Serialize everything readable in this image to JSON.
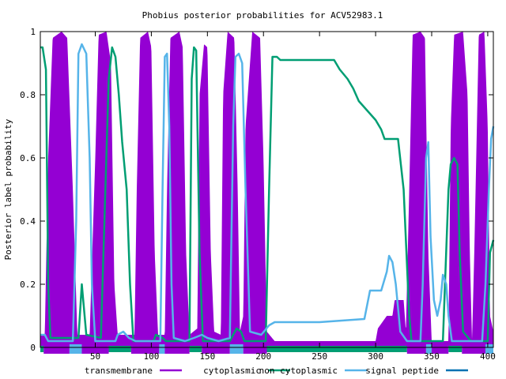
{
  "chart_data": {
    "type": "area",
    "title": "Phobius posterior probabilities for ACV52983.1",
    "xlabel": "",
    "ylabel": "Posterior label probability",
    "xlim": [
      1,
      405
    ],
    "ylim": [
      0,
      1
    ],
    "x_ticks": [
      50,
      100,
      150,
      200,
      250,
      300,
      350,
      400
    ],
    "y_ticks": [
      0,
      0.2,
      0.4,
      0.6,
      0.8,
      1
    ],
    "y_tick_labels": [
      "0",
      "0.2",
      "0.4",
      "0.6",
      "0.8",
      "1"
    ],
    "legend_position": "bottom",
    "series": [
      {
        "name": "transmembrane",
        "color": "#9400d3",
        "style": "impulse",
        "points": [
          [
            1,
            0.04
          ],
          [
            5,
            0.04
          ],
          [
            8,
            0.6
          ],
          [
            12,
            0.98
          ],
          [
            20,
            1
          ],
          [
            25,
            0.98
          ],
          [
            30,
            0.5
          ],
          [
            34,
            0.04
          ],
          [
            45,
            0.04
          ],
          [
            50,
            0.6
          ],
          [
            53,
            0.99
          ],
          [
            60,
            1
          ],
          [
            64,
            0.9
          ],
          [
            67,
            0.2
          ],
          [
            70,
            0.04
          ],
          [
            85,
            0.04
          ],
          [
            87,
            0.5
          ],
          [
            90,
            0.98
          ],
          [
            97,
            1
          ],
          [
            100,
            0.95
          ],
          [
            103,
            0.3
          ],
          [
            106,
            0.04
          ],
          [
            112,
            0.04
          ],
          [
            114,
            0.5
          ],
          [
            117,
            0.98
          ],
          [
            125,
            1
          ],
          [
            128,
            0.95
          ],
          [
            131,
            0.3
          ],
          [
            134,
            0.04
          ],
          [
            141,
            0.06
          ],
          [
            143,
            0.8
          ],
          [
            147,
            0.96
          ],
          [
            150,
            0.95
          ],
          [
            153,
            0.3
          ],
          [
            156,
            0.05
          ],
          [
            162,
            0.04
          ],
          [
            164,
            0.8
          ],
          [
            168,
            1
          ],
          [
            174,
            0.98
          ],
          [
            177,
            0.5
          ],
          [
            179,
            0.05
          ],
          [
            182,
            0.1
          ],
          [
            184,
            0.7
          ],
          [
            190,
            1
          ],
          [
            197,
            0.98
          ],
          [
            200,
            0.6
          ],
          [
            203,
            0.05
          ],
          [
            210,
            0.02
          ],
          [
            300,
            0.02
          ],
          [
            302,
            0.06
          ],
          [
            310,
            0.1
          ],
          [
            315,
            0.1
          ],
          [
            317,
            0.15
          ],
          [
            325,
            0.15
          ],
          [
            327,
            0.05
          ],
          [
            330,
            0.5
          ],
          [
            333,
            0.99
          ],
          [
            340,
            1
          ],
          [
            344,
            0.98
          ],
          [
            347,
            0.3
          ],
          [
            350,
            0.02
          ],
          [
            365,
            0.02
          ],
          [
            367,
            0.7
          ],
          [
            370,
            0.99
          ],
          [
            378,
            1
          ],
          [
            382,
            0.8
          ],
          [
            384,
            0.3
          ],
          [
            386,
            0.02
          ],
          [
            388,
            0.3
          ],
          [
            392,
            0.99
          ],
          [
            397,
            1
          ],
          [
            400,
            0.7
          ],
          [
            402,
            0.1
          ],
          [
            405,
            0.05
          ]
        ]
      },
      {
        "name": "cytoplasmic",
        "color": "#009e73",
        "style": "line",
        "points": [
          [
            1,
            0.95
          ],
          [
            3,
            0.95
          ],
          [
            6,
            0.88
          ],
          [
            8,
            0.2
          ],
          [
            10,
            0.03
          ],
          [
            35,
            0.03
          ],
          [
            38,
            0.2
          ],
          [
            42,
            0.04
          ],
          [
            55,
            0.03
          ],
          [
            62,
            0.85
          ],
          [
            65,
            0.95
          ],
          [
            68,
            0.92
          ],
          [
            71,
            0.8
          ],
          [
            74,
            0.65
          ],
          [
            78,
            0.5
          ],
          [
            81,
            0.2
          ],
          [
            84,
            0.02
          ],
          [
            102,
            0.02
          ],
          [
            104,
            0.04
          ],
          [
            110,
            0.03
          ],
          [
            113,
            0.02
          ],
          [
            134,
            0.02
          ],
          [
            136,
            0.85
          ],
          [
            138,
            0.95
          ],
          [
            140,
            0.94
          ],
          [
            143,
            0.3
          ],
          [
            146,
            0.02
          ],
          [
            160,
            0.02
          ],
          [
            170,
            0.02
          ],
          [
            176,
            0.06
          ],
          [
            180,
            0.05
          ],
          [
            183,
            0.02
          ],
          [
            202,
            0.02
          ],
          [
            205,
            0.5
          ],
          [
            208,
            0.92
          ],
          [
            212,
            0.92
          ],
          [
            215,
            0.91
          ],
          [
            263,
            0.91
          ],
          [
            268,
            0.88
          ],
          [
            275,
            0.85
          ],
          [
            280,
            0.82
          ],
          [
            285,
            0.78
          ],
          [
            290,
            0.76
          ],
          [
            295,
            0.74
          ],
          [
            300,
            0.72
          ],
          [
            305,
            0.69
          ],
          [
            308,
            0.66
          ],
          [
            320,
            0.66
          ],
          [
            325,
            0.5
          ],
          [
            330,
            0.1
          ],
          [
            332,
            0.02
          ],
          [
            360,
            0.02
          ],
          [
            365,
            0.5
          ],
          [
            367,
            0.58
          ],
          [
            370,
            0.6
          ],
          [
            373,
            0.58
          ],
          [
            375,
            0.3
          ],
          [
            378,
            0.05
          ],
          [
            385,
            0.02
          ],
          [
            400,
            0.02
          ],
          [
            402,
            0.3
          ],
          [
            405,
            0.34
          ]
        ]
      },
      {
        "name": "non cytoplasmic",
        "color": "#56b4e9",
        "style": "line",
        "points": [
          [
            1,
            0.04
          ],
          [
            5,
            0.04
          ],
          [
            8,
            0.02
          ],
          [
            30,
            0.02
          ],
          [
            33,
            0.4
          ],
          [
            35,
            0.93
          ],
          [
            38,
            0.96
          ],
          [
            42,
            0.93
          ],
          [
            45,
            0.6
          ],
          [
            47,
            0.2
          ],
          [
            50,
            0.02
          ],
          [
            68,
            0.02
          ],
          [
            70,
            0.04
          ],
          [
            75,
            0.05
          ],
          [
            80,
            0.03
          ],
          [
            86,
            0.02
          ],
          [
            108,
            0.02
          ],
          [
            110,
            0.5
          ],
          [
            112,
            0.92
          ],
          [
            114,
            0.93
          ],
          [
            116,
            0.7
          ],
          [
            118,
            0.2
          ],
          [
            120,
            0.03
          ],
          [
            130,
            0.02
          ],
          [
            138,
            0.03
          ],
          [
            145,
            0.04
          ],
          [
            150,
            0.03
          ],
          [
            160,
            0.02
          ],
          [
            170,
            0.03
          ],
          [
            173,
            0.7
          ],
          [
            175,
            0.92
          ],
          [
            178,
            0.93
          ],
          [
            181,
            0.9
          ],
          [
            184,
            0.5
          ],
          [
            188,
            0.05
          ],
          [
            198,
            0.04
          ],
          [
            205,
            0.07
          ],
          [
            210,
            0.08
          ],
          [
            250,
            0.08
          ],
          [
            270,
            0.085
          ],
          [
            290,
            0.09
          ],
          [
            295,
            0.18
          ],
          [
            305,
            0.18
          ],
          [
            310,
            0.24
          ],
          [
            312,
            0.29
          ],
          [
            315,
            0.27
          ],
          [
            318,
            0.2
          ],
          [
            322,
            0.05
          ],
          [
            328,
            0.02
          ],
          [
            340,
            0.02
          ],
          [
            342,
            0.2
          ],
          [
            345,
            0.6
          ],
          [
            347,
            0.65
          ],
          [
            349,
            0.35
          ],
          [
            352,
            0.15
          ],
          [
            355,
            0.1
          ],
          [
            358,
            0.15
          ],
          [
            360,
            0.23
          ],
          [
            363,
            0.2
          ],
          [
            365,
            0.1
          ],
          [
            368,
            0.02
          ],
          [
            395,
            0.02
          ],
          [
            398,
            0.2
          ],
          [
            401,
            0.5
          ],
          [
            403,
            0.66
          ],
          [
            405,
            0.7
          ]
        ]
      },
      {
        "name": "signal peptide",
        "color": "#0072b2",
        "style": "line",
        "points": []
      }
    ],
    "topology": [
      {
        "label": "cytoplasmic",
        "start": 1,
        "end": 4
      },
      {
        "label": "transmembrane",
        "start": 4,
        "end": 27
      },
      {
        "label": "non cytoplasmic",
        "start": 27,
        "end": 38
      },
      {
        "label": "transmembrane",
        "start": 38,
        "end": 62
      },
      {
        "label": "cytoplasmic",
        "start": 62,
        "end": 82
      },
      {
        "label": "transmembrane",
        "start": 82,
        "end": 107
      },
      {
        "label": "non cytoplasmic",
        "start": 107,
        "end": 112
      },
      {
        "label": "transmembrane",
        "start": 112,
        "end": 134
      },
      {
        "label": "cytoplasmic",
        "start": 134,
        "end": 145
      },
      {
        "label": "transmembrane",
        "start": 145,
        "end": 170
      },
      {
        "label": "non cytoplasmic",
        "start": 170,
        "end": 182
      },
      {
        "label": "transmembrane",
        "start": 182,
        "end": 203
      },
      {
        "label": "cytoplasmic",
        "start": 203,
        "end": 328
      },
      {
        "label": "transmembrane",
        "start": 328,
        "end": 345
      },
      {
        "label": "non cytoplasmic",
        "start": 345,
        "end": 350
      },
      {
        "label": "transmembrane",
        "start": 350,
        "end": 365
      },
      {
        "label": "cytoplasmic",
        "start": 365,
        "end": 377
      },
      {
        "label": "transmembrane",
        "start": 377,
        "end": 398
      },
      {
        "label": "non cytoplasmic",
        "start": 398,
        "end": 405
      }
    ]
  }
}
